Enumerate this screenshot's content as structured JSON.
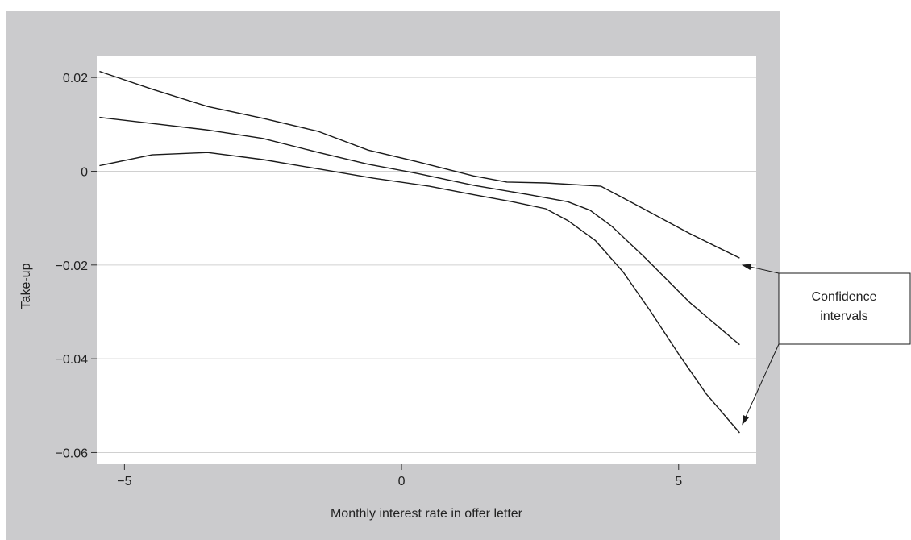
{
  "chart_data": {
    "type": "line",
    "title": "",
    "xlabel": "Monthly interest rate in offer letter",
    "ylabel": "Take-up",
    "xlim": [
      -5.5,
      6.4
    ],
    "ylim": [
      -0.0625,
      0.0245
    ],
    "x_ticks": [
      -5,
      0,
      5
    ],
    "x_tick_labels": [
      "−5",
      "0",
      "5"
    ],
    "y_ticks": [
      0.02,
      0,
      -0.02,
      -0.04,
      -0.06
    ],
    "y_tick_labels": [
      "0.02",
      "0",
      "−0.02",
      "−0.04",
      "−0.06"
    ],
    "grid": "horizontal",
    "colors": {
      "outer_background": "#cbcbcd",
      "plot_background": "#ffffff",
      "line": "#1a1a1a",
      "grid": "#d0d0d0"
    },
    "series": [
      {
        "role": "upper-confidence-band",
        "x": [
          -5.45,
          -4.5,
          -3.5,
          -2.5,
          -1.5,
          -0.6,
          0.3,
          1.3,
          1.9,
          2.6,
          3.6,
          4.4,
          5.2,
          6.1
        ],
        "y": [
          0.0213,
          0.0175,
          0.0138,
          0.0113,
          0.0085,
          0.0045,
          0.002,
          -0.001,
          -0.0023,
          -0.0025,
          -0.0032,
          -0.0082,
          -0.0133,
          -0.0185
        ]
      },
      {
        "role": "point-estimate",
        "x": [
          -5.45,
          -4.5,
          -3.5,
          -2.5,
          -1.5,
          -0.6,
          0.3,
          1.3,
          2.3,
          3.0,
          3.4,
          3.8,
          4.4,
          5.2,
          6.1
        ],
        "y": [
          0.0115,
          0.0102,
          0.0088,
          0.007,
          0.004,
          0.0015,
          -0.0005,
          -0.003,
          -0.005,
          -0.0065,
          -0.0083,
          -0.0118,
          -0.0185,
          -0.028,
          -0.037
        ]
      },
      {
        "role": "lower-confidence-band",
        "x": [
          -5.45,
          -4.5,
          -3.5,
          -2.5,
          -1.5,
          -0.5,
          0.5,
          1.3,
          2.0,
          2.6,
          3.0,
          3.5,
          4.0,
          4.5,
          5.0,
          5.5,
          6.1
        ],
        "y": [
          0.0012,
          0.0035,
          0.004,
          0.0025,
          0.0005,
          -0.0015,
          -0.0032,
          -0.005,
          -0.0065,
          -0.008,
          -0.0105,
          -0.0148,
          -0.0215,
          -0.03,
          -0.039,
          -0.0475,
          -0.0558
        ]
      }
    ],
    "annotation": {
      "text_lines": [
        "Confidence",
        "intervals"
      ],
      "arrow_targets": [
        {
          "x": 6.15,
          "y": -0.02
        },
        {
          "x": 6.15,
          "y": -0.054
        }
      ]
    }
  }
}
